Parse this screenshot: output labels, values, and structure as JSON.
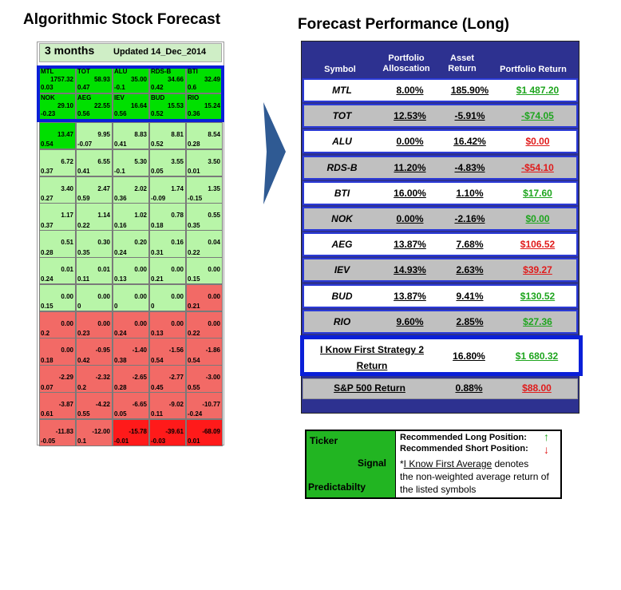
{
  "left": {
    "title": "Algorithmic Stock Forecast",
    "period": "3 months",
    "updated": "Updated 14_Dec_2014"
  },
  "right": {
    "title": "Forecast Performance (Long)"
  },
  "chart_data": [
    {
      "type": "heatmap",
      "title": "Algorithmic Stock Forecast",
      "top_row": [
        {
          "symbol": "MTL",
          "signal": "1757.32",
          "predictability": "0.03"
        },
        {
          "symbol": "TOT",
          "signal": "58.93",
          "predictability": "0.47"
        },
        {
          "symbol": "ALU",
          "signal": "35.00",
          "predictability": "-0.1"
        },
        {
          "symbol": "RDS-B",
          "signal": "34.66",
          "predictability": "0.42"
        },
        {
          "symbol": "BTI",
          "signal": "32.49",
          "predictability": "0.6"
        },
        {
          "symbol": "NOK",
          "signal": "29.10",
          "predictability": "-0.23"
        },
        {
          "symbol": "AEG",
          "signal": "22.55",
          "predictability": "0.56"
        },
        {
          "symbol": "IEV",
          "signal": "16.64",
          "predictability": "0.56"
        },
        {
          "symbol": "BUD",
          "signal": "15.53",
          "predictability": "0.52"
        },
        {
          "symbol": "RIO",
          "signal": "15.24",
          "predictability": "0.36"
        }
      ],
      "rows": [
        [
          [
            "13.47",
            "0.54"
          ],
          [
            "9.95",
            "-0.07"
          ],
          [
            "8.83",
            "0.41"
          ],
          [
            "8.81",
            "0.52"
          ],
          [
            "8.54",
            "0.28"
          ]
        ],
        [
          [
            "6.72",
            "0.37"
          ],
          [
            "6.55",
            "0.41"
          ],
          [
            "5.30",
            "-0.1"
          ],
          [
            "3.55",
            "0.05"
          ],
          [
            "3.50",
            "0.01"
          ]
        ],
        [
          [
            "3.40",
            "0.27"
          ],
          [
            "2.47",
            "0.59"
          ],
          [
            "2.02",
            "0.36"
          ],
          [
            "1.74",
            "-0.09"
          ],
          [
            "1.35",
            "-0.15"
          ]
        ],
        [
          [
            "1.17",
            "0.37"
          ],
          [
            "1.14",
            "0.22"
          ],
          [
            "1.02",
            "0.16"
          ],
          [
            "0.78",
            "0.18"
          ],
          [
            "0.55",
            "0.35"
          ]
        ],
        [
          [
            "0.51",
            "0.28"
          ],
          [
            "0.30",
            "0.35"
          ],
          [
            "0.20",
            "0.24"
          ],
          [
            "0.16",
            "0.31"
          ],
          [
            "0.04",
            "0.22"
          ]
        ],
        [
          [
            "0.01",
            "0.24"
          ],
          [
            "0.01",
            "0.11"
          ],
          [
            "0.00",
            "0.13"
          ],
          [
            "0.00",
            "0.21"
          ],
          [
            "0.00",
            "0.15"
          ]
        ],
        [
          [
            "0.00",
            "0.15"
          ],
          [
            "0.00",
            "0"
          ],
          [
            "0.00",
            "0"
          ],
          [
            "0.00",
            "0"
          ],
          [
            "0.00",
            "0.21"
          ]
        ],
        [
          [
            "0.00",
            "0.2"
          ],
          [
            "0.00",
            "0.23"
          ],
          [
            "0.00",
            "0.24"
          ],
          [
            "0.00",
            "0.13"
          ],
          [
            "0.00",
            "0.22"
          ]
        ],
        [
          [
            "0.00",
            "0.18"
          ],
          [
            "-0.95",
            "0.42"
          ],
          [
            "-1.40",
            "0.38"
          ],
          [
            "-1.56",
            "0.54"
          ],
          [
            "-1.86",
            "0.54"
          ]
        ],
        [
          [
            "-2.29",
            "0.07"
          ],
          [
            "-2.32",
            "0.2"
          ],
          [
            "-2.65",
            "0.28"
          ],
          [
            "-2.77",
            "0.45"
          ],
          [
            "-3.00",
            "0.55"
          ]
        ],
        [
          [
            "-3.87",
            "0.61"
          ],
          [
            "-4.22",
            "0.55"
          ],
          [
            "-6.65",
            "0.05"
          ],
          [
            "-9.02",
            "0.11"
          ],
          [
            "-10.77",
            "-0.24"
          ]
        ],
        [
          [
            "-11.83",
            "-0.05"
          ],
          [
            "-12.00",
            "0.1"
          ],
          [
            "-15.78",
            "-0.01"
          ],
          [
            "-39.61",
            "-0.03"
          ],
          [
            "-68.09",
            "0.01"
          ]
        ]
      ],
      "colors": {
        "strong_positive": "#00e000",
        "positive": "#b8f5a8",
        "negative": "#f26a66",
        "strong_negative": "#ff1a1a"
      }
    },
    {
      "type": "table",
      "title": "Forecast Performance (Long)",
      "headers": [
        "Symbol",
        "Portfolio Alloscation",
        "Asset Return",
        "Portfolio Return"
      ],
      "rows": [
        {
          "symbol": "MTL",
          "allocation": "8.00%",
          "asset_return": "185.90%",
          "portfolio_return": "$1 487.20",
          "ret_color": "green"
        },
        {
          "symbol": "TOT",
          "allocation": "12.53%",
          "asset_return": "-5.91%",
          "portfolio_return": "-$74.05",
          "ret_color": "green"
        },
        {
          "symbol": "ALU",
          "allocation": "0.00%",
          "asset_return": "16.42%",
          "portfolio_return": "$0.00",
          "ret_color": "red"
        },
        {
          "symbol": "RDS-B",
          "allocation": "11.20%",
          "asset_return": "-4.83%",
          "portfolio_return": "-$54.10",
          "ret_color": "red"
        },
        {
          "symbol": "BTI",
          "allocation": "16.00%",
          "asset_return": "1.10%",
          "portfolio_return": "$17.60",
          "ret_color": "green"
        },
        {
          "symbol": "NOK",
          "allocation": "0.00%",
          "asset_return": "-2.16%",
          "portfolio_return": "$0.00",
          "ret_color": "green"
        },
        {
          "symbol": "AEG",
          "allocation": "13.87%",
          "asset_return": "7.68%",
          "portfolio_return": "$106.52",
          "ret_color": "red"
        },
        {
          "symbol": "IEV",
          "allocation": "14.93%",
          "asset_return": "2.63%",
          "portfolio_return": "$39.27",
          "ret_color": "red"
        },
        {
          "symbol": "BUD",
          "allocation": "13.87%",
          "asset_return": "9.41%",
          "portfolio_return": "$130.52",
          "ret_color": "green"
        },
        {
          "symbol": "RIO",
          "allocation": "9.60%",
          "asset_return": "2.85%",
          "portfolio_return": "$27.36",
          "ret_color": "green"
        }
      ],
      "strategy": {
        "label_line1": "I Know First Strategy 2",
        "label_line2": "Return",
        "asset_return": "16.80%",
        "portfolio_return": "$1 680.32"
      },
      "benchmark": {
        "label": "S&P 500 Return",
        "asset_return": "0.88%",
        "portfolio_return": "$88.00"
      }
    }
  ],
  "legend": {
    "ticker": "Ticker",
    "signal": "Signal",
    "predictability": "Predictabilty",
    "long": "Recommended Long Position:",
    "short": "Recommended Short Position:",
    "up_arrow": "↑",
    "down_arrow": "↓",
    "note_star": "*",
    "note_link": "I Know First Average",
    "note_rest": " denotes",
    "note_line2": "the non-weighted average return of",
    "note_line3": "the listed symbols"
  }
}
